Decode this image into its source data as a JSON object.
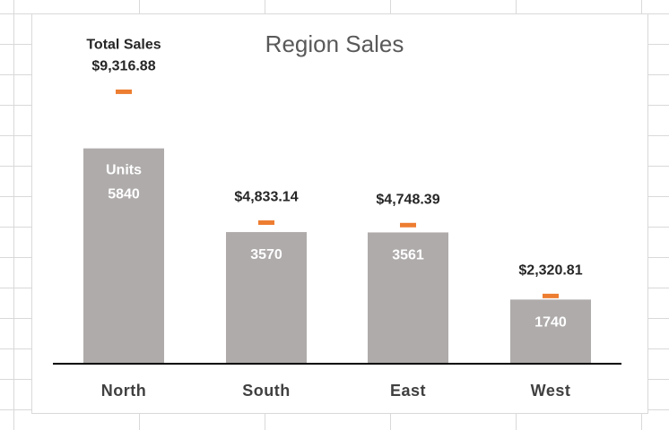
{
  "chart_data": {
    "type": "bar",
    "title": "Region Sales",
    "categories": [
      "North",
      "South",
      "East",
      "West"
    ],
    "series": [
      {
        "name": "Units",
        "values": [
          5840,
          3570,
          3561,
          1740
        ],
        "labels": [
          "5840",
          "3570",
          "3561",
          "1740"
        ]
      },
      {
        "name": "Total Sales",
        "values": [
          9316.88,
          4833.14,
          4748.39,
          2320.81
        ],
        "labels": [
          "$9,316.88",
          "$4,833.14",
          "$4,748.39",
          "$2,320.81"
        ]
      }
    ],
    "first_label_prefix": {
      "units": "Units",
      "sales": "Total Sales"
    },
    "ylim_units": [
      0,
      9500
    ],
    "ylim_sales": [
      0,
      12000
    ],
    "grid": false,
    "colors": {
      "bars": "#afabab",
      "markers": "#ed7d31",
      "axis": "#000000"
    }
  }
}
